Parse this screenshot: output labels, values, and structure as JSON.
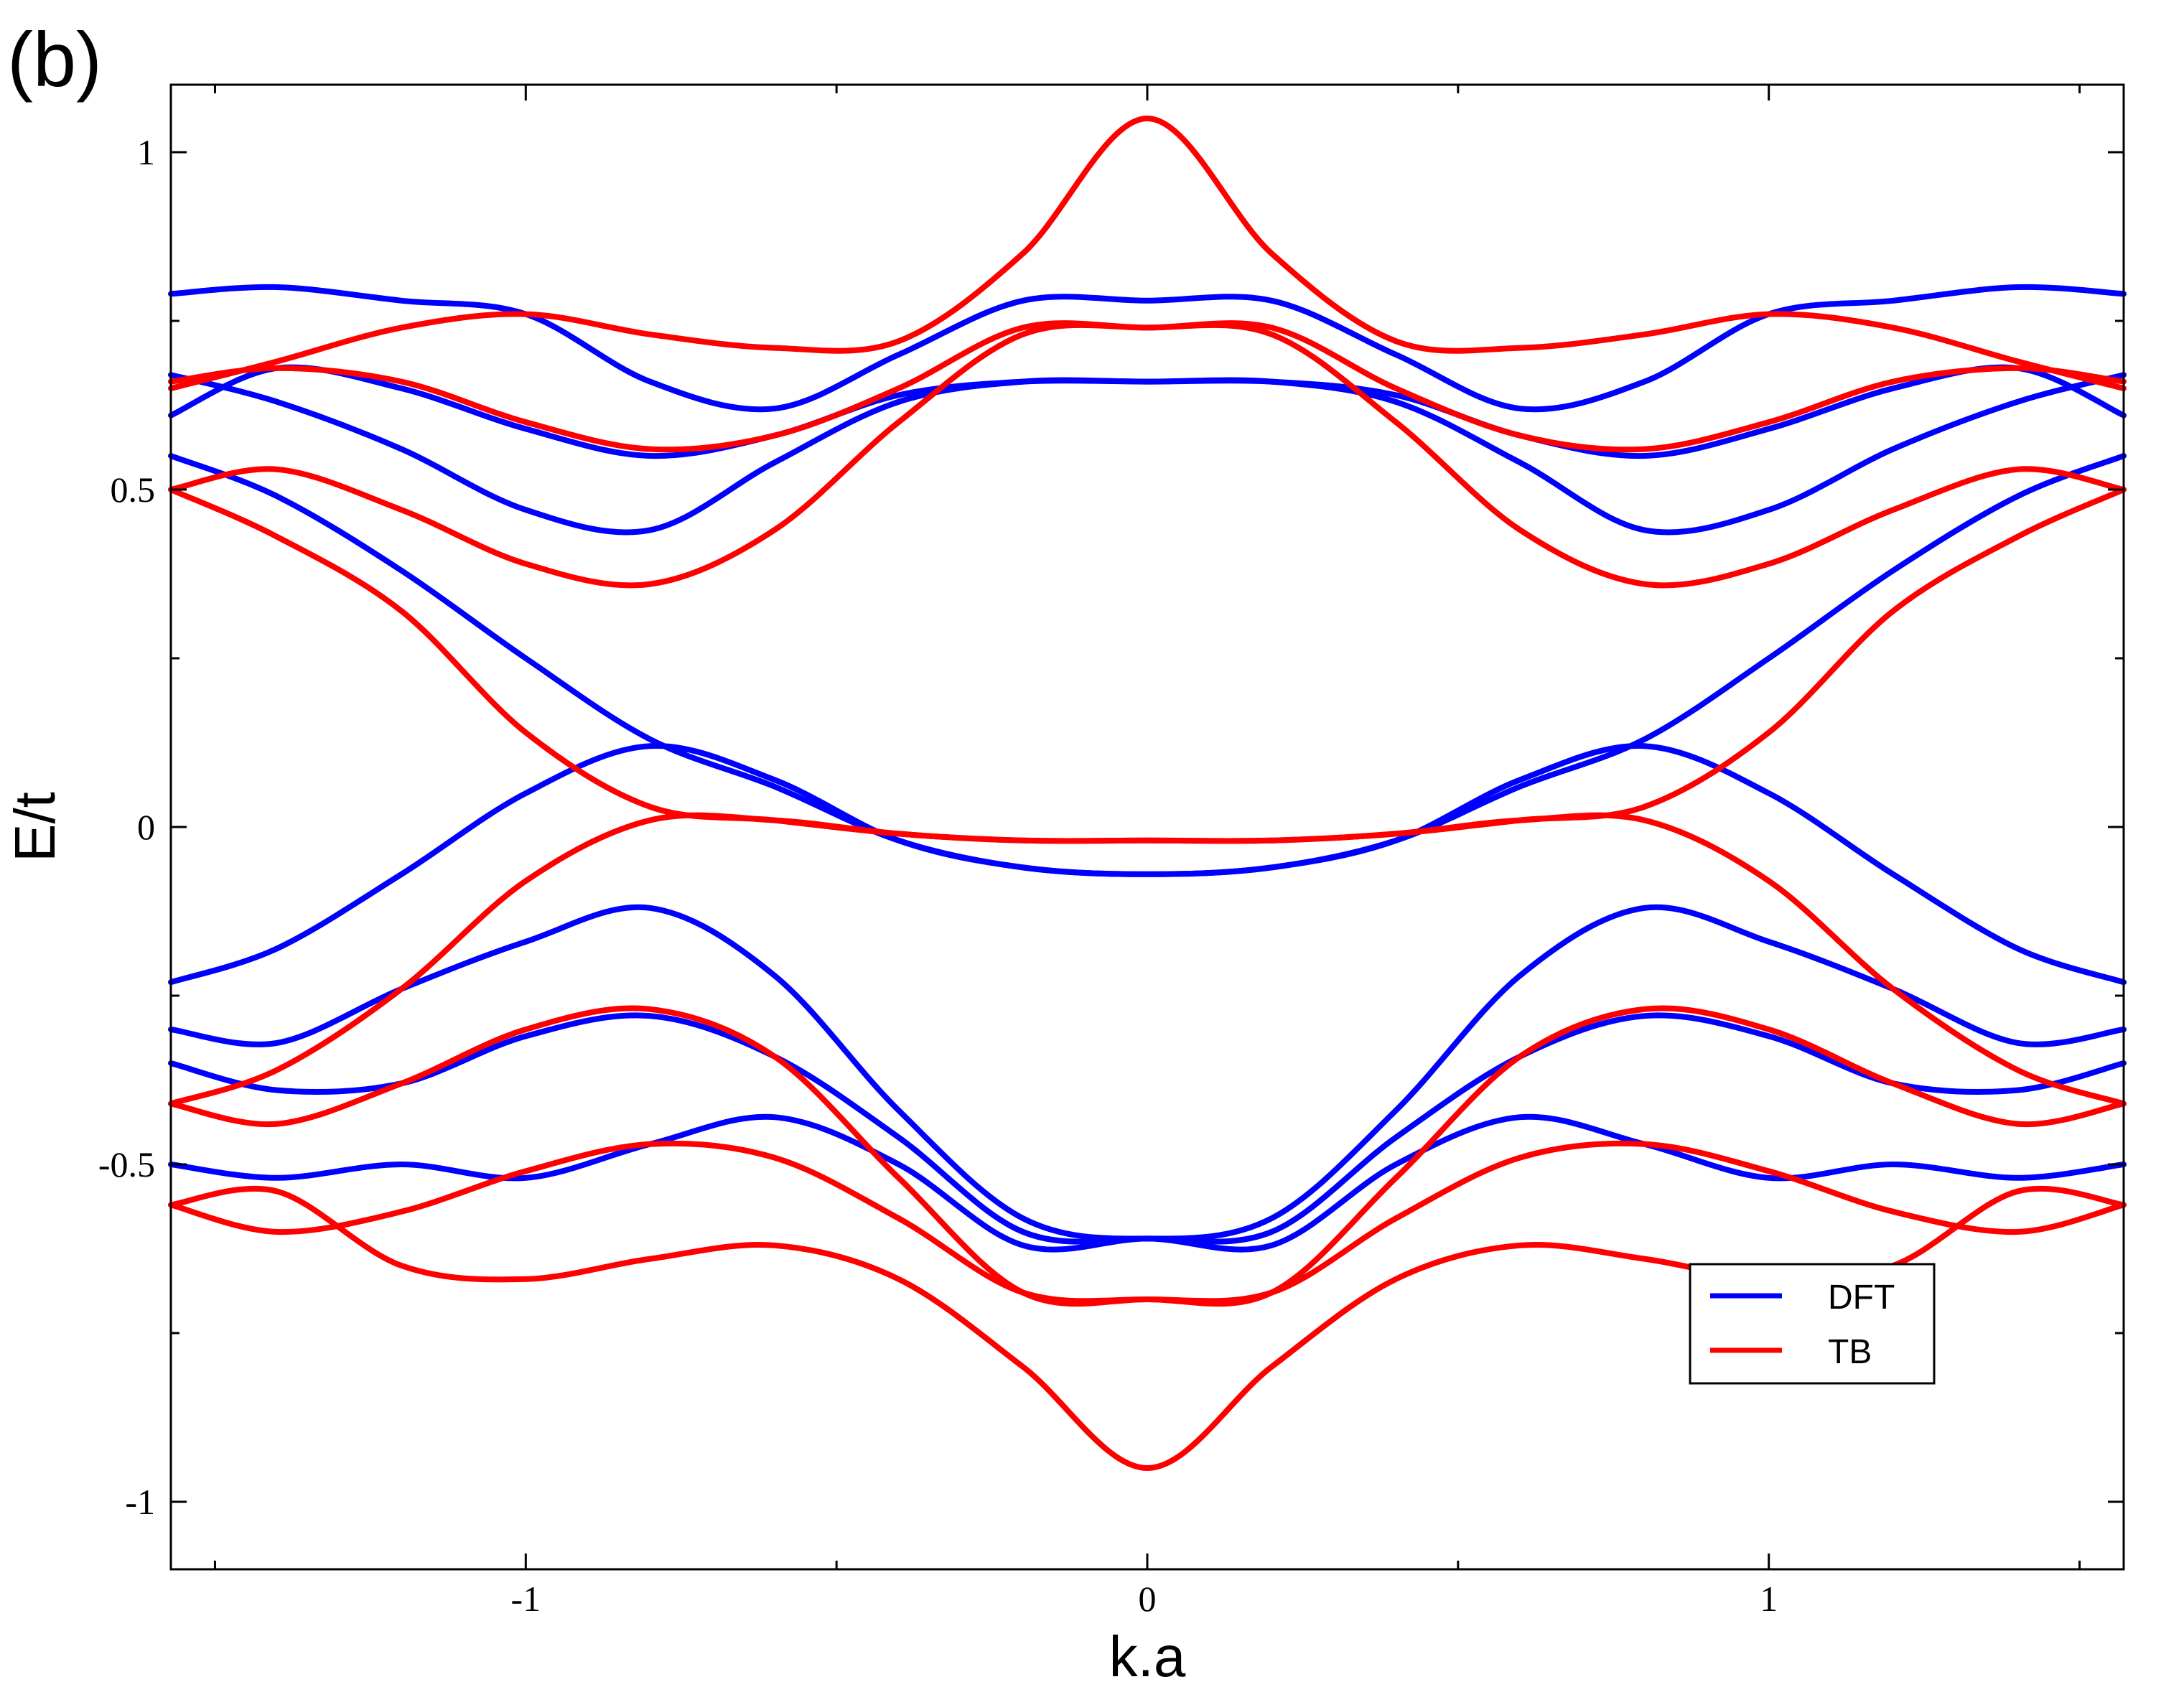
{
  "chart_data": {
    "type": "line",
    "panel_label": "(b)",
    "title": "",
    "xlabel": "k.a",
    "ylabel": "E/t",
    "xlim": [
      -1.571,
      1.571
    ],
    "ylim": [
      -1.1,
      1.1
    ],
    "x_ticks": [
      {
        "value": -1,
        "label": "-1"
      },
      {
        "value": 0,
        "label": "0"
      },
      {
        "value": 1,
        "label": "1"
      }
    ],
    "y_ticks": [
      {
        "value": -1,
        "label": "-1"
      },
      {
        "value": -0.5,
        "label": "-0.5"
      },
      {
        "value": 0,
        "label": "0"
      },
      {
        "value": 0.5,
        "label": "0.5"
      },
      {
        "value": 1,
        "label": "1"
      }
    ],
    "grid": false,
    "legend": {
      "position": "bottom-right",
      "entries": [
        {
          "name": "DFT",
          "color": "#0000ff"
        },
        {
          "name": "TB",
          "color": "#ff0000"
        }
      ]
    },
    "symmetric_about_zero": true,
    "series": [
      {
        "name": "DFT",
        "color": "#0000ff",
        "x": [
          0,
          0.2,
          0.4,
          0.6,
          0.8,
          1.0,
          1.2,
          1.4,
          1.571
        ],
        "y": [
          0.78,
          0.78,
          0.7,
          0.62,
          0.66,
          0.76,
          0.78,
          0.8,
          0.79
        ]
      },
      {
        "name": "DFT",
        "color": "#0000ff",
        "x": [
          0,
          0.2,
          0.4,
          0.6,
          0.8,
          1.0,
          1.2,
          1.4,
          1.571
        ],
        "y": [
          0.66,
          0.66,
          0.64,
          0.58,
          0.55,
          0.59,
          0.65,
          0.68,
          0.61
        ]
      },
      {
        "name": "DFT",
        "color": "#0000ff",
        "x": [
          0,
          0.2,
          0.4,
          0.6,
          0.8,
          1.0,
          1.2,
          1.4,
          1.571
        ],
        "y": [
          0.66,
          0.66,
          0.63,
          0.54,
          0.44,
          0.47,
          0.56,
          0.63,
          0.67
        ]
      },
      {
        "name": "DFT",
        "color": "#0000ff",
        "x": [
          0,
          0.2,
          0.4,
          0.6,
          0.8,
          1.0,
          1.2,
          1.4,
          1.571
        ],
        "y": [
          -0.07,
          -0.06,
          -0.02,
          0.06,
          0.13,
          0.25,
          0.38,
          0.49,
          0.55
        ]
      },
      {
        "name": "DFT",
        "color": "#0000ff",
        "x": [
          0,
          0.2,
          0.4,
          0.6,
          0.8,
          1.0,
          1.2,
          1.4,
          1.571
        ],
        "y": [
          -0.07,
          -0.06,
          -0.02,
          0.07,
          0.12,
          0.05,
          -0.07,
          -0.18,
          -0.23
        ]
      },
      {
        "name": "DFT",
        "color": "#0000ff",
        "x": [
          0,
          0.2,
          0.4,
          0.6,
          0.8,
          1.0,
          1.2,
          1.4,
          1.571
        ],
        "y": [
          -0.61,
          -0.58,
          -0.42,
          -0.22,
          -0.12,
          -0.17,
          -0.24,
          -0.32,
          -0.3
        ]
      },
      {
        "name": "DFT",
        "color": "#0000ff",
        "x": [
          0,
          0.2,
          0.4,
          0.6,
          0.8,
          1.0,
          1.2,
          1.4,
          1.571
        ],
        "y": [
          -0.61,
          -0.6,
          -0.46,
          -0.34,
          -0.28,
          -0.31,
          -0.38,
          -0.39,
          -0.35
        ]
      },
      {
        "name": "DFT",
        "color": "#0000ff",
        "x": [
          0,
          0.2,
          0.4,
          0.6,
          0.8,
          1.0,
          1.2,
          1.4,
          1.571
        ],
        "y": [
          -0.61,
          -0.62,
          -0.5,
          -0.43,
          -0.47,
          -0.52,
          -0.5,
          -0.52,
          -0.5
        ]
      },
      {
        "name": "TB",
        "color": "#ff0000",
        "x": [
          0,
          0.2,
          0.4,
          0.6,
          0.8,
          1.0,
          1.2,
          1.4,
          1.571
        ],
        "y": [
          1.05,
          0.85,
          0.72,
          0.71,
          0.73,
          0.76,
          0.74,
          0.69,
          0.65
        ]
      },
      {
        "name": "TB",
        "color": "#ff0000",
        "x": [
          0,
          0.2,
          0.4,
          0.6,
          0.8,
          1.0,
          1.2,
          1.4,
          1.571
        ],
        "y": [
          0.74,
          0.74,
          0.65,
          0.58,
          0.56,
          0.6,
          0.66,
          0.68,
          0.66
        ]
      },
      {
        "name": "TB",
        "color": "#ff0000",
        "x": [
          0,
          0.2,
          0.4,
          0.6,
          0.8,
          1.0,
          1.2,
          1.4,
          1.571
        ],
        "y": [
          0.74,
          0.73,
          0.6,
          0.44,
          0.36,
          0.39,
          0.47,
          0.53,
          0.5
        ]
      },
      {
        "name": "TB",
        "color": "#ff0000",
        "x": [
          0,
          0.2,
          0.4,
          0.6,
          0.8,
          1.0,
          1.2,
          1.4,
          1.571
        ],
        "y": [
          -0.02,
          -0.02,
          -0.01,
          0.01,
          0.03,
          0.14,
          0.32,
          0.43,
          0.5
        ]
      },
      {
        "name": "TB",
        "color": "#ff0000",
        "x": [
          0,
          0.2,
          0.4,
          0.6,
          0.8,
          1.0,
          1.2,
          1.4,
          1.571
        ],
        "y": [
          -0.02,
          -0.02,
          -0.01,
          0.01,
          0.01,
          -0.08,
          -0.24,
          -0.36,
          -0.41
        ]
      },
      {
        "name": "TB",
        "color": "#ff0000",
        "x": [
          0,
          0.2,
          0.4,
          0.6,
          0.8,
          1.0,
          1.2,
          1.4,
          1.571
        ],
        "y": [
          -0.7,
          -0.69,
          -0.52,
          -0.34,
          -0.27,
          -0.3,
          -0.38,
          -0.44,
          -0.41
        ]
      },
      {
        "name": "TB",
        "color": "#ff0000",
        "x": [
          0,
          0.2,
          0.4,
          0.6,
          0.8,
          1.0,
          1.2,
          1.4,
          1.571
        ],
        "y": [
          -0.7,
          -0.69,
          -0.58,
          -0.49,
          -0.47,
          -0.51,
          -0.57,
          -0.6,
          -0.56
        ]
      },
      {
        "name": "TB",
        "color": "#ff0000",
        "x": [
          0,
          0.2,
          0.4,
          0.6,
          0.8,
          1.0,
          1.2,
          1.4,
          1.571
        ],
        "y": [
          -0.95,
          -0.8,
          -0.67,
          -0.62,
          -0.64,
          -0.67,
          -0.65,
          -0.54,
          -0.56
        ]
      }
    ]
  }
}
